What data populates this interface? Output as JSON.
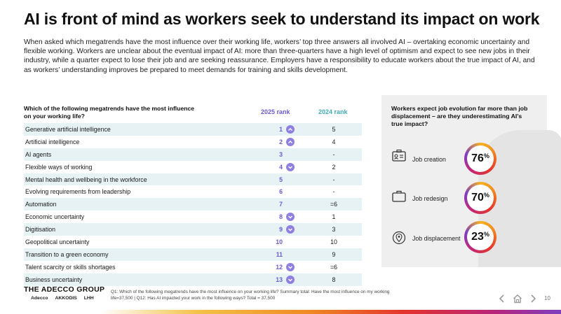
{
  "title": "AI is front of mind as workers seek to understand its impact on work",
  "intro": "When asked which megatrends have the most influence over their working life, workers’ top three answers all involved AI – overtaking economic uncertainty and flexible working. Workers are unclear about the eventual impact of AI: more than three-quarters have a high level of optimism and expect to see new jobs in their industry, while a quarter expect to lose their job and are seeking reassurance. Employers have a responsibility to educate workers about the true impact of AI, and as workers’ understanding improves be prepared to meet demands for training and skills development.",
  "table": {
    "question": "Which of the following megatrends have the most influence on your working life?",
    "col_2025": "2025 rank",
    "col_2024": "2024 rank",
    "rows": [
      {
        "label": "Generative artificial intelligence",
        "rank2025": "1",
        "trend": "up",
        "rank2024": "5"
      },
      {
        "label": "Artificial intelligence",
        "rank2025": "2",
        "trend": "up",
        "rank2024": "4"
      },
      {
        "label": "AI agents",
        "rank2025": "3",
        "trend": "none",
        "rank2024": "-"
      },
      {
        "label": "Flexible ways of working",
        "rank2025": "4",
        "trend": "down",
        "rank2024": "2"
      },
      {
        "label": "Mental health and wellbeing in the workforce",
        "rank2025": "5",
        "trend": "none",
        "rank2024": "-"
      },
      {
        "label": "Evolving requirements from leadership",
        "rank2025": "6",
        "trend": "none",
        "rank2024": "-"
      },
      {
        "label": "Automation",
        "rank2025": "7",
        "trend": "none",
        "rank2024": "=6"
      },
      {
        "label": "Economic uncertainty",
        "rank2025": "8",
        "trend": "down",
        "rank2024": "1"
      },
      {
        "label": "Digitisation",
        "rank2025": "9",
        "trend": "down",
        "rank2024": "3"
      },
      {
        "label": "Geopolitical uncertainty",
        "rank2025": "10",
        "trend": "none",
        "rank2024": "10"
      },
      {
        "label": "Transition to a green economy",
        "rank2025": "11",
        "trend": "none",
        "rank2024": "9"
      },
      {
        "label": "Talent scarcity or skills shortages",
        "rank2025": "12",
        "trend": "down",
        "rank2024": "=6"
      },
      {
        "label": "Business uncertainty",
        "rank2025": "13",
        "trend": "down",
        "rank2024": "8"
      }
    ]
  },
  "panel": {
    "title": "Workers expect job evolution far more than job displacement – are they underestimating AI’s true impact?",
    "stats": [
      {
        "label": "Job creation",
        "value": "76",
        "unit": "%",
        "icon": "id-card-icon"
      },
      {
        "label": "Job redesign",
        "value": "70",
        "unit": "%",
        "icon": "briefcase-icon"
      },
      {
        "label": "Job displacement",
        "value": "23",
        "unit": "%",
        "icon": "location-pin-icon"
      }
    ]
  },
  "footer": {
    "brand": "THE ADECCO GROUP",
    "subbrands": [
      "Adecco",
      "AKKODIS",
      "LHH"
    ],
    "footnote": "Q1: Which of the following megatrends have the most influence on your working life? Summary total: Have the most influence on my working life=37,500 | Q12: Has AI impacted your work in the following ways? Total = 37,500",
    "page_number": "10"
  },
  "colors": {
    "rank2025": "#6b5bd6",
    "rank2024": "#3fb0b6",
    "row_shade": "#e6f2f4",
    "panel_bg": "#efefef"
  }
}
